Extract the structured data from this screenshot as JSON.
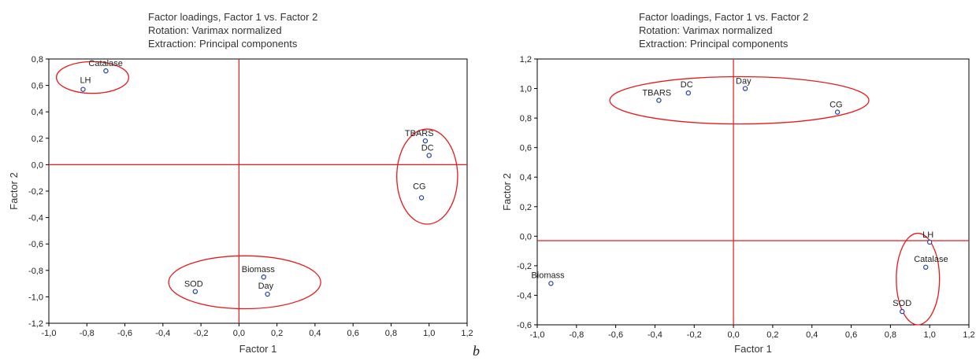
{
  "figure_letter": "b",
  "colors": {
    "axis": "#000000",
    "reference_line": "#e8191a",
    "ellipse": "#e8191a",
    "point": "#1f3fae",
    "text": "#222222"
  },
  "chart_data": [
    {
      "id": "a",
      "type": "scatter",
      "title_lines": [
        "Factor loadings, Factor 1 vs. Factor 2",
        "Rotation: Varimax normalized",
        "Extraction: Principal components"
      ],
      "xlabel": "Factor 1",
      "ylabel": "Factor 2",
      "xlim": [
        -1.0,
        1.2
      ],
      "ylim": [
        -1.2,
        0.8
      ],
      "xticks": [
        "-1,0",
        "-0,8",
        "-0,6",
        "-0,4",
        "-0,2",
        "0,0",
        "0,2",
        "0,4",
        "0,6",
        "0,8",
        "1,0",
        "1,2"
      ],
      "yticks": [
        "-1,2",
        "-1,0",
        "-0,8",
        "-0,6",
        "-0,4",
        "-0,2",
        "0,0",
        "0,2",
        "0,4",
        "0,6",
        "0,8"
      ],
      "grid": false,
      "reference_lines": {
        "x": 0.0,
        "y": 0.0
      },
      "points": [
        {
          "label": "Catalase",
          "x": -0.7,
          "y": 0.71
        },
        {
          "label": "LH",
          "x": -0.82,
          "y": 0.57
        },
        {
          "label": "TBARS",
          "x": 0.98,
          "y": 0.18
        },
        {
          "label": "DC",
          "x": 1.0,
          "y": 0.07
        },
        {
          "label": "CG",
          "x": 0.96,
          "y": -0.25
        },
        {
          "label": "Biomass",
          "x": 0.13,
          "y": -0.85
        },
        {
          "label": "SOD",
          "x": -0.23,
          "y": -0.96
        },
        {
          "label": "Day",
          "x": 0.15,
          "y": -0.98
        }
      ],
      "groups": [
        {
          "members": [
            "Catalase",
            "LH"
          ],
          "cx": -0.77,
          "cy": 0.66,
          "rx": 0.19,
          "ry": 0.12
        },
        {
          "members": [
            "TBARS",
            "DC",
            "CG"
          ],
          "cx": 0.99,
          "cy": -0.09,
          "rx": 0.16,
          "ry": 0.36
        },
        {
          "members": [
            "Biomass",
            "SOD",
            "Day"
          ],
          "cx": 0.03,
          "cy": -0.89,
          "rx": 0.4,
          "ry": 0.2
        }
      ]
    },
    {
      "id": "b",
      "type": "scatter",
      "title_lines": [
        "Factor loadings, Factor 1 vs. Factor 2",
        "Rotation: Varimax normalized",
        "Extraction: Principal components"
      ],
      "xlabel": "Factor 1",
      "ylabel": "Factor 2",
      "xlim": [
        -1.0,
        1.2
      ],
      "ylim": [
        -0.6,
        1.2
      ],
      "xticks": [
        "-1,0",
        "-0,8",
        "-0,6",
        "-0,4",
        "-0,2",
        "0,0",
        "0,2",
        "0,4",
        "0,6",
        "0,8",
        "1,0",
        "1,2"
      ],
      "yticks": [
        "-0,6",
        "-0,4",
        "-0,2",
        "0,0",
        "0,2",
        "0,4",
        "0,6",
        "0,8",
        "1,0",
        "1,2"
      ],
      "grid": false,
      "reference_lines": {
        "x": 0.0,
        "y": -0.03
      },
      "points": [
        {
          "label": "TBARS",
          "x": -0.38,
          "y": 0.92
        },
        {
          "label": "DC",
          "x": -0.23,
          "y": 0.97
        },
        {
          "label": "Day",
          "x": 0.06,
          "y": 1.0
        },
        {
          "label": "CG",
          "x": 0.53,
          "y": 0.84
        },
        {
          "label": "LH",
          "x": 1.0,
          "y": -0.04
        },
        {
          "label": "Catalase",
          "x": 0.98,
          "y": -0.21
        },
        {
          "label": "SOD",
          "x": 0.86,
          "y": -0.51
        },
        {
          "label": "Biomass",
          "x": -0.93,
          "y": -0.32
        }
      ],
      "groups": [
        {
          "members": [
            "TBARS",
            "DC",
            "Day",
            "CG"
          ],
          "cx": 0.03,
          "cy": 0.92,
          "rx": 0.66,
          "ry": 0.16
        },
        {
          "members": [
            "LH",
            "Catalase",
            "SOD"
          ],
          "cx": 0.94,
          "cy": -0.29,
          "rx": 0.11,
          "ry": 0.31
        }
      ]
    }
  ]
}
